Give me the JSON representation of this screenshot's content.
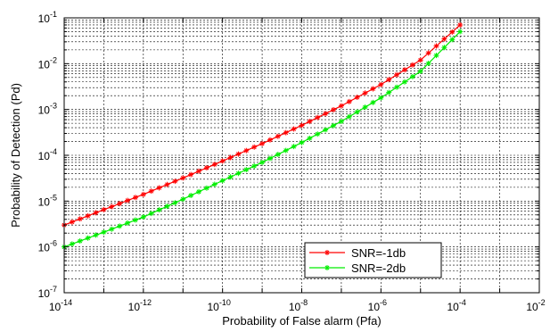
{
  "chart_data": {
    "type": "line",
    "title": "",
    "xlabel": "Probability of False alarm (Pfa)",
    "ylabel": "Probability of Detection (Pd)",
    "xscale": "log",
    "yscale": "log",
    "xlim": [
      1e-14,
      0.01
    ],
    "ylim": [
      1e-07,
      0.1
    ],
    "grid": true,
    "legend_position": "bottom-right",
    "x_ticks": [
      {
        "value": 1e-14,
        "base": "10",
        "exp": "-14"
      },
      {
        "value": 1e-12,
        "base": "10",
        "exp": "-12"
      },
      {
        "value": 1e-10,
        "base": "10",
        "exp": "-10"
      },
      {
        "value": 1e-08,
        "base": "10",
        "exp": "-8"
      },
      {
        "value": 1e-06,
        "base": "10",
        "exp": "-6"
      },
      {
        "value": 0.0001,
        "base": "10",
        "exp": "-4"
      },
      {
        "value": 0.01,
        "base": "10",
        "exp": "-2"
      }
    ],
    "y_ticks": [
      {
        "value": 1e-07,
        "base": "10",
        "exp": "-7"
      },
      {
        "value": 1e-06,
        "base": "10",
        "exp": "-6"
      },
      {
        "value": 1e-05,
        "base": "10",
        "exp": "-5"
      },
      {
        "value": 0.0001,
        "base": "10",
        "exp": "-4"
      },
      {
        "value": 0.001,
        "base": "10",
        "exp": "-3"
      },
      {
        "value": 0.01,
        "base": "10",
        "exp": "-2"
      },
      {
        "value": 0.1,
        "base": "10",
        "exp": "-1"
      }
    ],
    "series": [
      {
        "name": "SNR=-1db",
        "color": "#ff0000",
        "marker": "asterisk",
        "x": [
          1e-14,
          1e-13,
          1e-12,
          1e-11,
          1e-10,
          1e-09,
          1e-08,
          1e-07,
          1e-06,
          1e-05,
          0.0001
        ],
        "y": [
          3e-06,
          6.5e-06,
          1.4e-05,
          3.2e-05,
          7.5e-05,
          0.00018,
          0.00045,
          0.0012,
          0.0035,
          0.012,
          0.07
        ]
      },
      {
        "name": "SNR=-2db",
        "color": "#00ee00",
        "marker": "asterisk",
        "x": [
          1e-14,
          1e-13,
          1e-12,
          1e-11,
          1e-10,
          1e-09,
          1e-08,
          1e-07,
          1e-06,
          1e-05,
          0.0001
        ],
        "y": [
          1e-06,
          2.1e-06,
          4.5e-06,
          1.1e-05,
          2.8e-05,
          7e-05,
          0.00019,
          0.00055,
          0.0018,
          0.0068,
          0.05
        ]
      }
    ]
  }
}
